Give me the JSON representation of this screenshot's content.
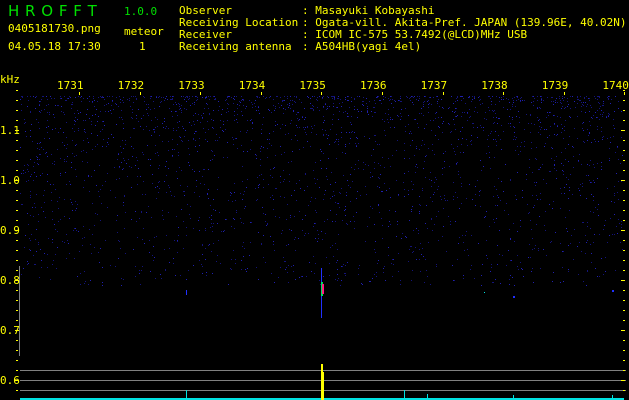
{
  "app": {
    "name": "H R O F F T",
    "version": "1.0.0"
  },
  "file": {
    "name": "0405181730.png",
    "datetime": "04.05.18 17:30"
  },
  "meteor": {
    "label": "meteor",
    "count": "1"
  },
  "info": [
    {
      "label": "Observer",
      "value": ": Masayuki Kobayashi"
    },
    {
      "label": "Receiving Location",
      "value": ": Ogata-vill. Akita-Pref. JAPAN (139.96E, 40.02N)"
    },
    {
      "label": "Receiver",
      "value": ": ICOM IC-575 53.7492(@LCD)MHz USB"
    },
    {
      "label": "Receiving antenna",
      "value": ": A504HB(yagi 4el)"
    }
  ],
  "axis": {
    "y_unit": "kHz",
    "y_ticks": [
      "1.1",
      "1.0",
      "0.9",
      "0.8",
      "0.7",
      "0.6"
    ],
    "x_ticks": [
      "1731",
      "1732",
      "1733",
      "1734",
      "1735",
      "1736",
      "1737",
      "1738",
      "1739",
      "1740"
    ]
  },
  "colors": {
    "text": "#ffff00",
    "logo": "#00e000",
    "noise": "#1a1a90",
    "meteor_core": "#ff2080",
    "histogram": "#00e0e0",
    "histogram_peak": "#ffff00",
    "gridline": "#808080"
  }
}
